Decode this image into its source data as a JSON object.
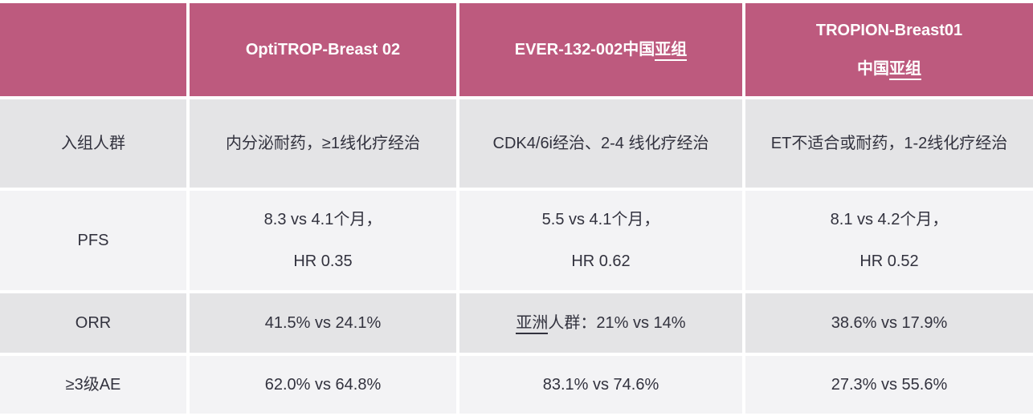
{
  "colors": {
    "header_bg": "#bd5a7e",
    "header_text": "#ffffff",
    "row_shaded_bg": "#e4e4e6",
    "row_plain_bg": "#f3f3f5",
    "body_text": "#32323e",
    "grid_gap": "#ffffff"
  },
  "header": {
    "blank": "",
    "optitrop": "OptiTROP-Breast 02",
    "ever_main": "EVER-132-002中国",
    "ever_underlined": "亚组",
    "tropion_line1": "TROPION-Breast01",
    "tropion_line2_main": "中国",
    "tropion_line2_underlined": "亚组"
  },
  "rows": {
    "population": {
      "label": "入组人群",
      "optitrop": "内分泌耐药，≥1线化疗经治",
      "ever": "CDK4/6i经治、2-4 线化疗经治",
      "tropion": "ET不适合或耐药，1-2线化疗经治"
    },
    "pfs": {
      "label": "PFS",
      "optitrop_line1": "8.3 vs 4.1个月，",
      "optitrop_line2": "HR 0.35",
      "ever_line1": "5.5 vs 4.1个月，",
      "ever_line2": "HR 0.62",
      "tropion_line1": "8.1 vs 4.2个月，",
      "tropion_line2": "HR 0.52"
    },
    "orr": {
      "label": "ORR",
      "optitrop": "41.5% vs 24.1%",
      "ever_underlined": "亚洲",
      "ever_rest": "人群：21% vs 14%",
      "tropion": "38.6% vs 17.9%"
    },
    "ae": {
      "label": "≥3级AE",
      "optitrop": "62.0% vs 64.8%",
      "ever": "83.1% vs 74.6%",
      "tropion": "27.3% vs 55.6%"
    }
  }
}
